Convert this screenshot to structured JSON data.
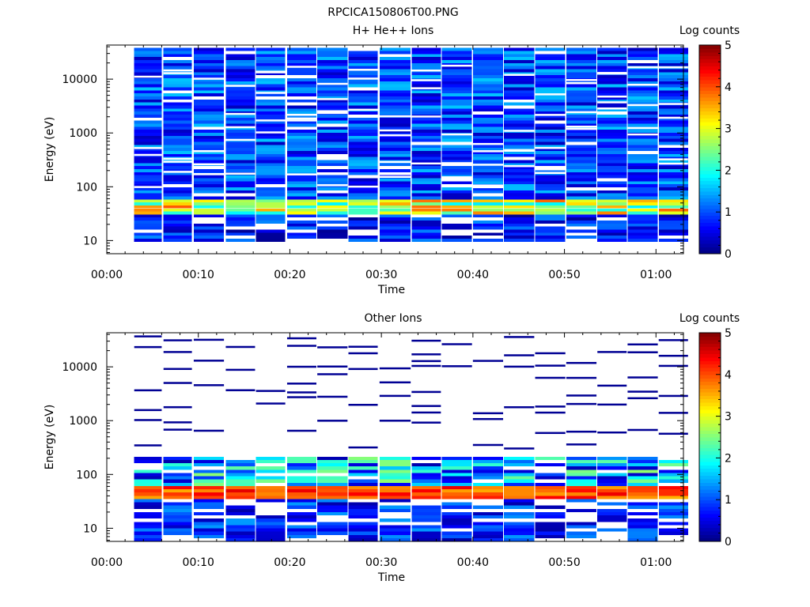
{
  "figure_title": "RPCICA150806T00.PNG",
  "chart_data": [
    {
      "type": "heatmap",
      "title": "H+ He++ Ions",
      "xlabel": "Time",
      "ylabel": "Energy (eV)",
      "x_ticks": [
        "00:00",
        "00:10",
        "00:20",
        "00:30",
        "00:40",
        "00:50",
        "01:00"
      ],
      "xlim_minutes": [
        0,
        63
      ],
      "y_scale": "log",
      "y_ticks": [
        "10",
        "100",
        "1000",
        "10000"
      ],
      "ylim": [
        5.7,
        43000
      ],
      "colorbar": {
        "label": "Log counts",
        "ticks": [
          "0",
          "1",
          "2",
          "3",
          "4",
          "5"
        ],
        "range": [
          0,
          5
        ],
        "colormap": "jet"
      },
      "time_bins_minutes": [
        [
          3,
          6
        ],
        [
          6.2,
          9.3
        ],
        [
          9.5,
          12.8
        ],
        [
          13,
          16.2
        ],
        [
          16.3,
          19.5
        ],
        [
          19.7,
          22.9
        ],
        [
          23,
          26.3
        ],
        [
          26.4,
          29.6
        ],
        [
          29.8,
          33.2
        ],
        [
          33.3,
          36.5
        ],
        [
          36.6,
          39.9
        ],
        [
          40,
          43.3
        ],
        [
          43.4,
          46.7
        ],
        [
          46.8,
          50.1
        ],
        [
          50.2,
          53.5
        ],
        [
          53.6,
          56.8
        ],
        [
          56.9,
          60.2
        ],
        [
          60.3,
          63.5
        ]
      ],
      "energy_profile": {
        "low_energy_limit_eV": 9.5,
        "peak_energy_eV": [
          30,
          60
        ],
        "peak_log_counts": [
          1.8,
          4.0
        ],
        "background_log_counts": [
          0.3,
          1.6
        ]
      }
    },
    {
      "type": "heatmap",
      "title": "Other Ions",
      "xlabel": "Time",
      "ylabel": "Energy (eV)",
      "x_ticks": [
        "00:00",
        "00:10",
        "00:20",
        "00:30",
        "00:40",
        "00:50",
        "01:00"
      ],
      "xlim_minutes": [
        0,
        63
      ],
      "y_scale": "log",
      "y_ticks": [
        "10",
        "100",
        "1000",
        "10000"
      ],
      "ylim": [
        5.7,
        43000
      ],
      "colorbar": {
        "label": "Log counts",
        "ticks": [
          "0",
          "1",
          "2",
          "3",
          "4",
          "5"
        ],
        "range": [
          0,
          5
        ],
        "colormap": "jet"
      },
      "time_bins_minutes": [
        [
          3,
          6
        ],
        [
          6.2,
          9.3
        ],
        [
          9.5,
          12.8
        ],
        [
          13,
          16.2
        ],
        [
          16.3,
          19.5
        ],
        [
          19.7,
          22.9
        ],
        [
          23,
          26.3
        ],
        [
          26.4,
          29.6
        ],
        [
          29.8,
          33.2
        ],
        [
          33.3,
          36.5
        ],
        [
          36.6,
          39.9
        ],
        [
          40,
          43.3
        ],
        [
          43.4,
          46.7
        ],
        [
          46.8,
          50.1
        ],
        [
          50.2,
          53.5
        ],
        [
          53.6,
          56.8
        ],
        [
          56.9,
          60.2
        ],
        [
          60.3,
          63.5
        ]
      ],
      "energy_profile": {
        "low_energy_limit_eV": 5.7,
        "peak_energy_eV": [
          33,
          60
        ],
        "peak_log_counts": [
          3.5,
          4.5
        ],
        "background_log_counts": [
          0,
          1
        ],
        "sparse_high_energy_lines_eV": [
          350,
          650,
          1050,
          1500,
          2000,
          2800,
          3500,
          5000,
          7000,
          10000,
          13500,
          18000,
          25000,
          35000
        ]
      }
    }
  ]
}
